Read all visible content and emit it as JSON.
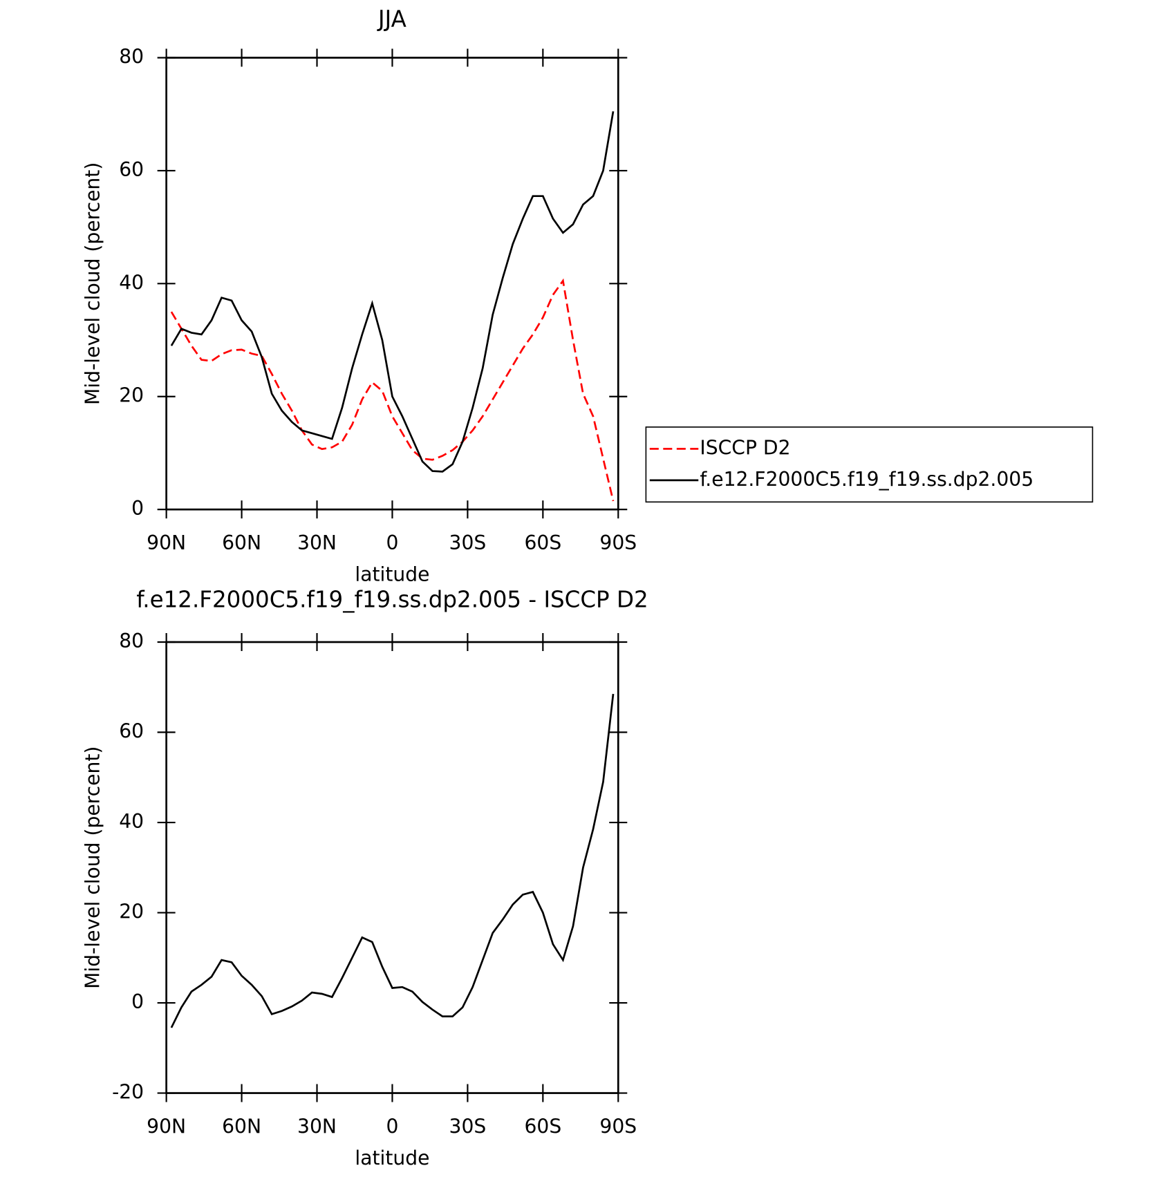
{
  "chart_data": [
    {
      "type": "line",
      "title": "JJA",
      "x_label": "latitude",
      "y_label": "Mid-level cloud (percent)",
      "x": [
        88,
        84,
        80,
        76,
        72,
        68,
        64,
        60,
        56,
        52,
        48,
        44,
        40,
        36,
        32,
        28,
        24,
        20,
        16,
        12,
        8,
        4,
        0,
        -4,
        -8,
        -12,
        -16,
        -20,
        -24,
        -28,
        -32,
        -36,
        -40,
        -44,
        -48,
        -52,
        -56,
        -60,
        -64,
        -68,
        -72,
        -76,
        -80,
        -84,
        -88
      ],
      "series": [
        {
          "name": "ISCCP D2",
          "color": "#ff0000",
          "style": "dashed",
          "values": [
            35,
            32,
            29,
            26.5,
            26.3,
            27.5,
            28.2,
            28.3,
            27.6,
            27.2,
            24,
            20.5,
            17.5,
            14,
            11.5,
            10.7,
            11,
            12,
            15,
            19.5,
            22.5,
            21,
            16.5,
            13.5,
            10.5,
            9,
            8.8,
            9.5,
            10.5,
            12,
            14,
            16.5,
            19.5,
            22.5,
            25.5,
            28.5,
            31,
            34,
            38,
            40.5,
            30,
            20.5,
            16.5,
            9,
            1.5
          ]
        },
        {
          "name": "f.e12.F2000C5.f19_f19.ss.dp2.005",
          "color": "#000000",
          "style": "solid",
          "values": [
            29,
            32,
            31.3,
            31,
            33.5,
            37.5,
            37,
            33.5,
            31.5,
            27,
            20.5,
            17.5,
            15.5,
            14,
            13.5,
            13,
            12.5,
            18,
            25,
            31,
            36.5,
            30,
            20,
            16.5,
            12.5,
            8.5,
            6.8,
            6.7,
            8,
            12,
            18,
            25,
            34.5,
            41,
            47,
            51.5,
            55.5,
            55.5,
            51.5,
            49,
            50.5,
            54,
            55.5,
            60,
            70.5
          ]
        }
      ],
      "xlim": [
        90,
        -90
      ],
      "xticks": [
        {
          "value": 90,
          "label": "90N"
        },
        {
          "value": 60,
          "label": "60N"
        },
        {
          "value": 30,
          "label": "30N"
        },
        0,
        {
          "value": -30,
          "label": "30S"
        },
        {
          "value": -60,
          "label": "60S"
        },
        {
          "value": -90,
          "label": "90S"
        }
      ],
      "ylim": [
        0,
        80
      ],
      "yticks": [
        0,
        20,
        40,
        60,
        80
      ],
      "legend": "right"
    },
    {
      "type": "line",
      "title": "f.e12.F2000C5.f19_f19.ss.dp2.005 - ISCCP D2",
      "x_label": "latitude",
      "y_label": "Mid-level cloud (percent)",
      "x": [
        88,
        84,
        80,
        76,
        72,
        68,
        64,
        60,
        56,
        52,
        48,
        44,
        40,
        36,
        32,
        28,
        24,
        20,
        16,
        12,
        8,
        4,
        0,
        -4,
        -8,
        -12,
        -16,
        -20,
        -24,
        -28,
        -32,
        -36,
        -40,
        -44,
        -48,
        -52,
        -56,
        -60,
        -64,
        -68,
        -72,
        -76,
        -80,
        -84,
        -88
      ],
      "series": [
        {
          "color": "#000000",
          "style": "solid",
          "values": [
            -5.5,
            -1,
            2.5,
            4,
            5.8,
            9.5,
            9,
            6,
            4,
            1.5,
            -2.5,
            -1.8,
            -0.8,
            0.5,
            2.3,
            2,
            1.3,
            5.5,
            10,
            14.5,
            13.5,
            8,
            3.3,
            3.5,
            2.5,
            0.2,
            -1.5,
            -3,
            -3,
            -1,
            3.5,
            9.5,
            15.5,
            18.5,
            21.8,
            24,
            24.6,
            20,
            13,
            9.5,
            17,
            30,
            38.5,
            49,
            68.5
          ]
        }
      ],
      "xlim": [
        90,
        -90
      ],
      "xticks": [
        {
          "value": 90,
          "label": "90N"
        },
        {
          "value": 60,
          "label": "60N"
        },
        {
          "value": 30,
          "label": "30N"
        },
        0,
        {
          "value": -30,
          "label": "30S"
        },
        {
          "value": -60,
          "label": "60S"
        },
        {
          "value": -90,
          "label": "90S"
        }
      ],
      "ylim": [
        -20,
        80
      ],
      "yticks": [
        -20,
        0,
        20,
        40,
        60,
        80
      ]
    }
  ]
}
